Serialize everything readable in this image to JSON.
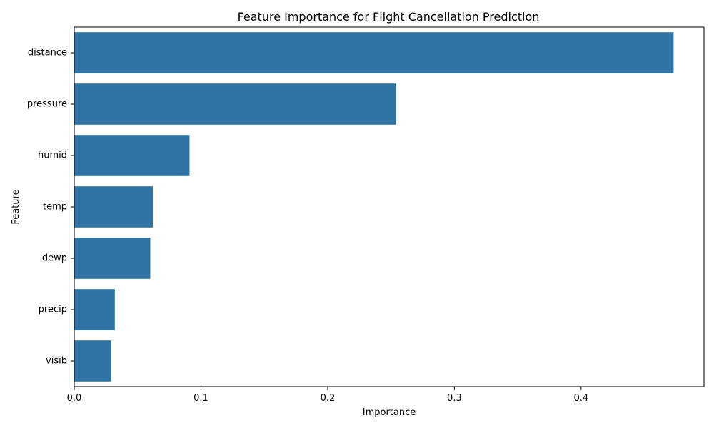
{
  "chart_data": {
    "type": "bar",
    "orientation": "horizontal",
    "title": "Feature Importance for Flight Cancellation Prediction",
    "xlabel": "Importance",
    "ylabel": "Feature",
    "categories": [
      "distance",
      "pressure",
      "humid",
      "temp",
      "dewp",
      "precip",
      "visib"
    ],
    "values": [
      0.473,
      0.254,
      0.091,
      0.062,
      0.06,
      0.032,
      0.029
    ],
    "xlim": [
      0,
      0.497
    ],
    "xticks": [
      0.0,
      0.1,
      0.2,
      0.3,
      0.4
    ],
    "xtick_labels": [
      "0.0",
      "0.1",
      "0.2",
      "0.3",
      "0.4"
    ],
    "bar_color": "#2e74a5",
    "grid": false,
    "legend": "none"
  }
}
